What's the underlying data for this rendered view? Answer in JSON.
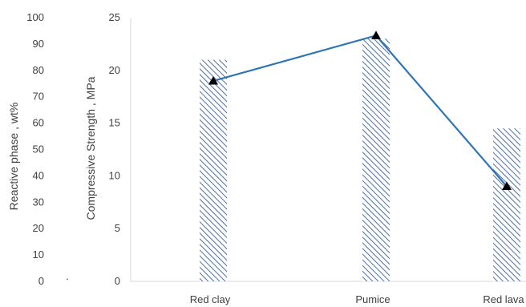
{
  "chart_data": {
    "type": "bar",
    "categories": [
      "Red clay",
      "Pumice",
      "Red lava"
    ],
    "series": [
      {
        "axis": "left",
        "style": "hatched-bar",
        "values": [
          84,
          92,
          58
        ]
      },
      {
        "axis": "right",
        "style": "line-triangle-markers",
        "values": [
          19,
          23.3,
          9
        ]
      }
    ],
    "left_axis": {
      "label": "Reactive phase , wt%",
      "ylim": [
        0,
        100
      ],
      "ticks": [
        "0",
        "10",
        "20",
        "30",
        "40",
        "50",
        "60",
        "70",
        "80",
        "90",
        "100"
      ]
    },
    "right_axis": {
      "label": "Compressive Strength , MPa",
      "ylim": [
        0,
        25
      ],
      "ticks": [
        "0",
        "5",
        "10",
        "15",
        "20",
        "25"
      ]
    },
    "grid": false,
    "legend": "none",
    "colors": {
      "bar_hatch": "#4f6fa3",
      "line": "#2e75b6",
      "marker": "#000000",
      "axis": "#d9d9d9",
      "text": "#404040"
    }
  }
}
